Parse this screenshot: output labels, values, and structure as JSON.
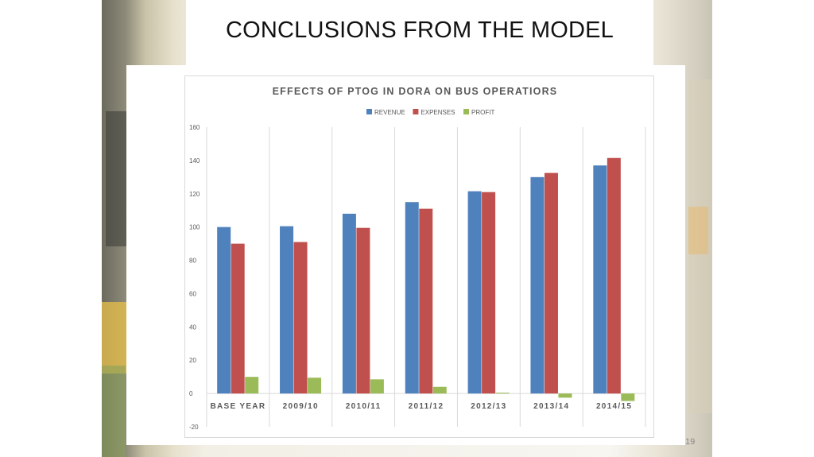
{
  "slide": {
    "title": "CONCLUSIONS FROM THE MODEL",
    "page_number": "19"
  },
  "chart_data": {
    "type": "bar",
    "title": "EFFECTS OF PTOG IN DORA ON BUS OPERATIORS",
    "categories": [
      "BASE YEAR",
      "2009/10",
      "2010/11",
      "2011/12",
      "2012/13",
      "2013/14",
      "2014/15"
    ],
    "series": [
      {
        "name": "REVENUE",
        "color": "#4f81bd",
        "values": [
          100,
          100.5,
          108,
          115,
          121.5,
          130,
          137
        ]
      },
      {
        "name": "EXPENSES",
        "color": "#c0504d",
        "values": [
          90,
          91,
          99.5,
          111,
          121,
          132.5,
          141.5
        ]
      },
      {
        "name": "PROFIT",
        "color": "#9bbb59",
        "values": [
          10,
          9.5,
          8.5,
          4,
          0.5,
          -2.5,
          -4.5
        ]
      }
    ],
    "ylim": [
      -20,
      160
    ],
    "yticks": [
      -20,
      0,
      20,
      40,
      60,
      80,
      100,
      120,
      140,
      160
    ],
    "xlabel": "",
    "ylabel": "",
    "legend_position": "top-center",
    "grid": "vertical category separators"
  }
}
